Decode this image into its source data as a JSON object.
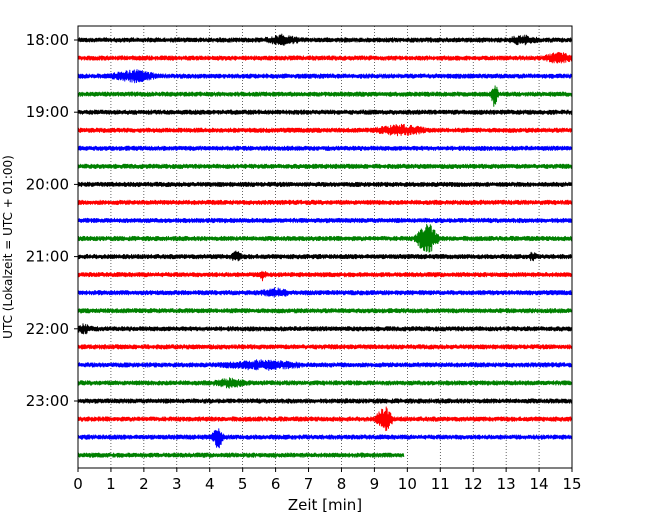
{
  "chart_data": {
    "type": "line",
    "title": "",
    "xlabel": "Zeit  [min]",
    "ylabel": "UTC (Lokalzeit = UTC + 01:00)",
    "xlim": [
      0,
      15
    ],
    "xticks": [
      0,
      1,
      2,
      3,
      4,
      5,
      6,
      7,
      8,
      9,
      10,
      11,
      12,
      13,
      14,
      15
    ],
    "ylim_hours": [
      18.0,
      24.0
    ],
    "y_tick_labels": [
      "18:00",
      "19:00",
      "20:00",
      "21:00",
      "22:00",
      "23:00"
    ],
    "grid": "vertical dotted lines at each minute",
    "colors": [
      "#000000",
      "#ff0000",
      "#0000ff",
      "#008000"
    ],
    "trace_interval_minutes": 15,
    "traces": [
      {
        "start": "18:00",
        "color": "#000000",
        "x_end": 15,
        "events": [
          {
            "x": 6.2,
            "amp": 0.35,
            "width": 0.6
          },
          {
            "x": 13.5,
            "amp": 0.35,
            "width": 0.5
          }
        ]
      },
      {
        "start": "18:15",
        "color": "#ff0000",
        "x_end": 15,
        "events": [
          {
            "x": 14.6,
            "amp": 0.4,
            "width": 0.5
          }
        ]
      },
      {
        "start": "18:30",
        "color": "#0000ff",
        "x_end": 15,
        "events": [
          {
            "x": 1.7,
            "amp": 0.45,
            "width": 0.8
          }
        ]
      },
      {
        "start": "18:45",
        "color": "#008000",
        "x_end": 15,
        "events": [
          {
            "x": 12.65,
            "amp": 1.2,
            "width": 0.12
          }
        ]
      },
      {
        "start": "19:00",
        "color": "#000000",
        "x_end": 15,
        "events": []
      },
      {
        "start": "19:15",
        "color": "#ff0000",
        "x_end": 15,
        "events": [
          {
            "x": 9.8,
            "amp": 0.4,
            "width": 0.9
          }
        ]
      },
      {
        "start": "19:30",
        "color": "#0000ff",
        "x_end": 15,
        "events": []
      },
      {
        "start": "19:45",
        "color": "#008000",
        "x_end": 15,
        "events": []
      },
      {
        "start": "20:00",
        "color": "#000000",
        "x_end": 15,
        "events": []
      },
      {
        "start": "20:15",
        "color": "#ff0000",
        "x_end": 15,
        "events": []
      },
      {
        "start": "20:30",
        "color": "#0000ff",
        "x_end": 15,
        "events": []
      },
      {
        "start": "20:45",
        "color": "#008000",
        "x_end": 15,
        "events": [
          {
            "x": 10.6,
            "amp": 1.5,
            "width": 0.4
          }
        ]
      },
      {
        "start": "21:00",
        "color": "#000000",
        "x_end": 15,
        "events": [
          {
            "x": 4.8,
            "amp": 0.4,
            "width": 0.2
          },
          {
            "x": 13.8,
            "amp": 0.3,
            "width": 0.15
          }
        ]
      },
      {
        "start": "21:15",
        "color": "#ff0000",
        "x_end": 15,
        "events": [
          {
            "x": 5.6,
            "amp": 0.4,
            "width": 0.15
          }
        ]
      },
      {
        "start": "21:30",
        "color": "#0000ff",
        "x_end": 15,
        "events": [
          {
            "x": 6.0,
            "amp": 0.3,
            "width": 0.5
          }
        ]
      },
      {
        "start": "21:45",
        "color": "#008000",
        "x_end": 15,
        "events": []
      },
      {
        "start": "22:00",
        "color": "#000000",
        "x_end": 15,
        "events": [
          {
            "x": 0.2,
            "amp": 0.35,
            "width": 0.3
          }
        ]
      },
      {
        "start": "22:15",
        "color": "#ff0000",
        "x_end": 15,
        "events": []
      },
      {
        "start": "22:30",
        "color": "#0000ff",
        "x_end": 15,
        "events": [
          {
            "x": 5.6,
            "amp": 0.35,
            "width": 1.4
          }
        ]
      },
      {
        "start": "22:45",
        "color": "#008000",
        "x_end": 15,
        "events": [
          {
            "x": 4.6,
            "amp": 0.3,
            "width": 0.6
          }
        ]
      },
      {
        "start": "23:00",
        "color": "#000000",
        "x_end": 15,
        "events": []
      },
      {
        "start": "23:15",
        "color": "#ff0000",
        "x_end": 15,
        "events": [
          {
            "x": 9.3,
            "amp": 1.2,
            "width": 0.3
          }
        ]
      },
      {
        "start": "23:30",
        "color": "#0000ff",
        "x_end": 15,
        "events": [
          {
            "x": 4.25,
            "amp": 1.0,
            "width": 0.2
          }
        ]
      },
      {
        "start": "23:45",
        "color": "#008000",
        "x_end": 9.9,
        "events": []
      }
    ]
  }
}
